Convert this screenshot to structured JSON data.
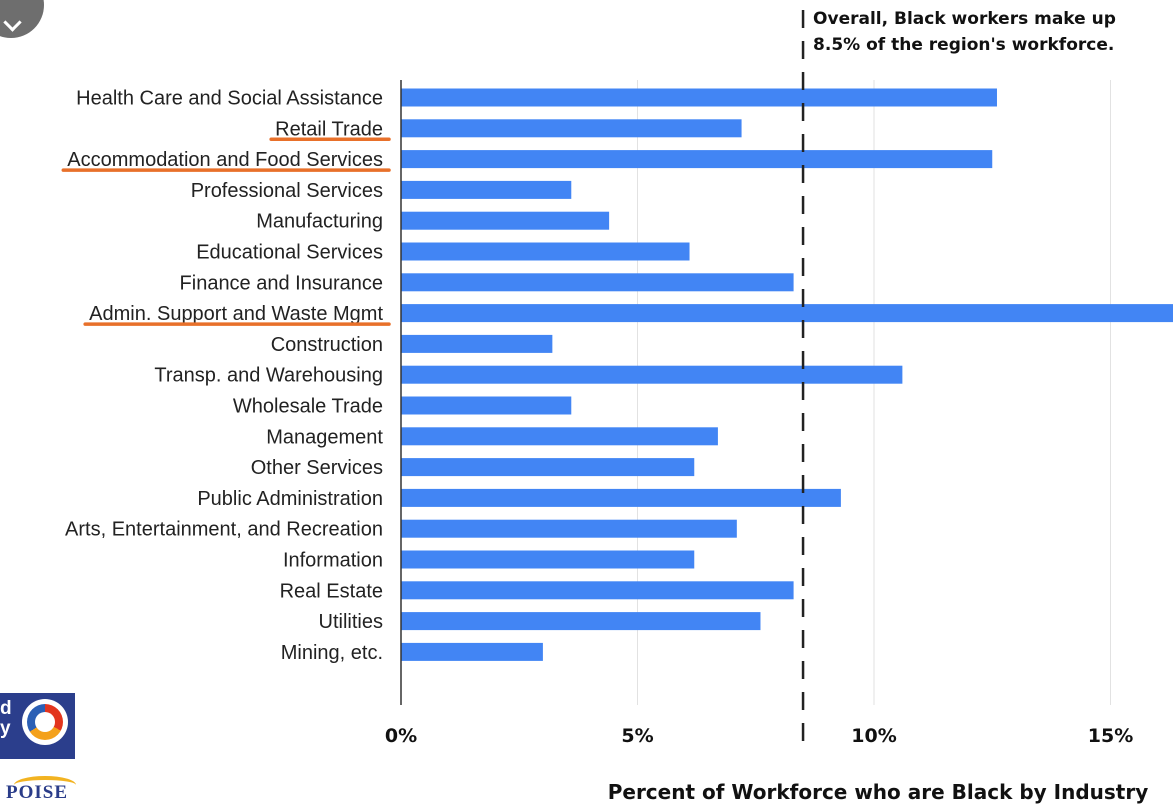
{
  "chart_data": {
    "type": "bar",
    "orientation": "horizontal",
    "categories": [
      "Health Care and Social Assistance",
      "Retail Trade",
      "Accommodation and Food Services",
      "Professional Services",
      "Manufacturing",
      "Educational Services",
      "Finance and Insurance",
      "Admin. Support and Waste Mgmt",
      "Construction",
      "Transp. and Warehousing",
      "Wholesale Trade",
      "Management",
      "Other Services",
      "Public Administration",
      "Arts, Entertainment, and Recreation",
      "Information",
      "Real Estate",
      "Utilities",
      "Mining, etc."
    ],
    "values": [
      12.6,
      7.2,
      12.5,
      3.6,
      4.4,
      6.1,
      8.3,
      16.5,
      3.2,
      10.6,
      3.6,
      6.7,
      6.2,
      9.3,
      7.1,
      6.2,
      8.3,
      7.6,
      3.0
    ],
    "xlim": [
      0,
      16
    ],
    "ticks": [
      0,
      5,
      10,
      15
    ],
    "tick_labels": [
      "0%",
      "5%",
      "10%",
      "15%"
    ],
    "xlabel": "Percent of Workforce who are Black by Industry",
    "reference_line": {
      "value": 8.5,
      "label_lines": [
        "Overall, Black workers make up",
        "8.5% of the region's workforce."
      ]
    },
    "highlighted_categories": [
      "Retail Trade",
      "Accommodation and Food Services",
      "Admin. Support and Waste Mgmt"
    ],
    "grid": true,
    "colors": {
      "bar": "#4285f4",
      "grid": "#e2e2e2",
      "axis": "#333333",
      "highlight_underline": "#e8702a",
      "reference_line": "#222222"
    }
  }
}
